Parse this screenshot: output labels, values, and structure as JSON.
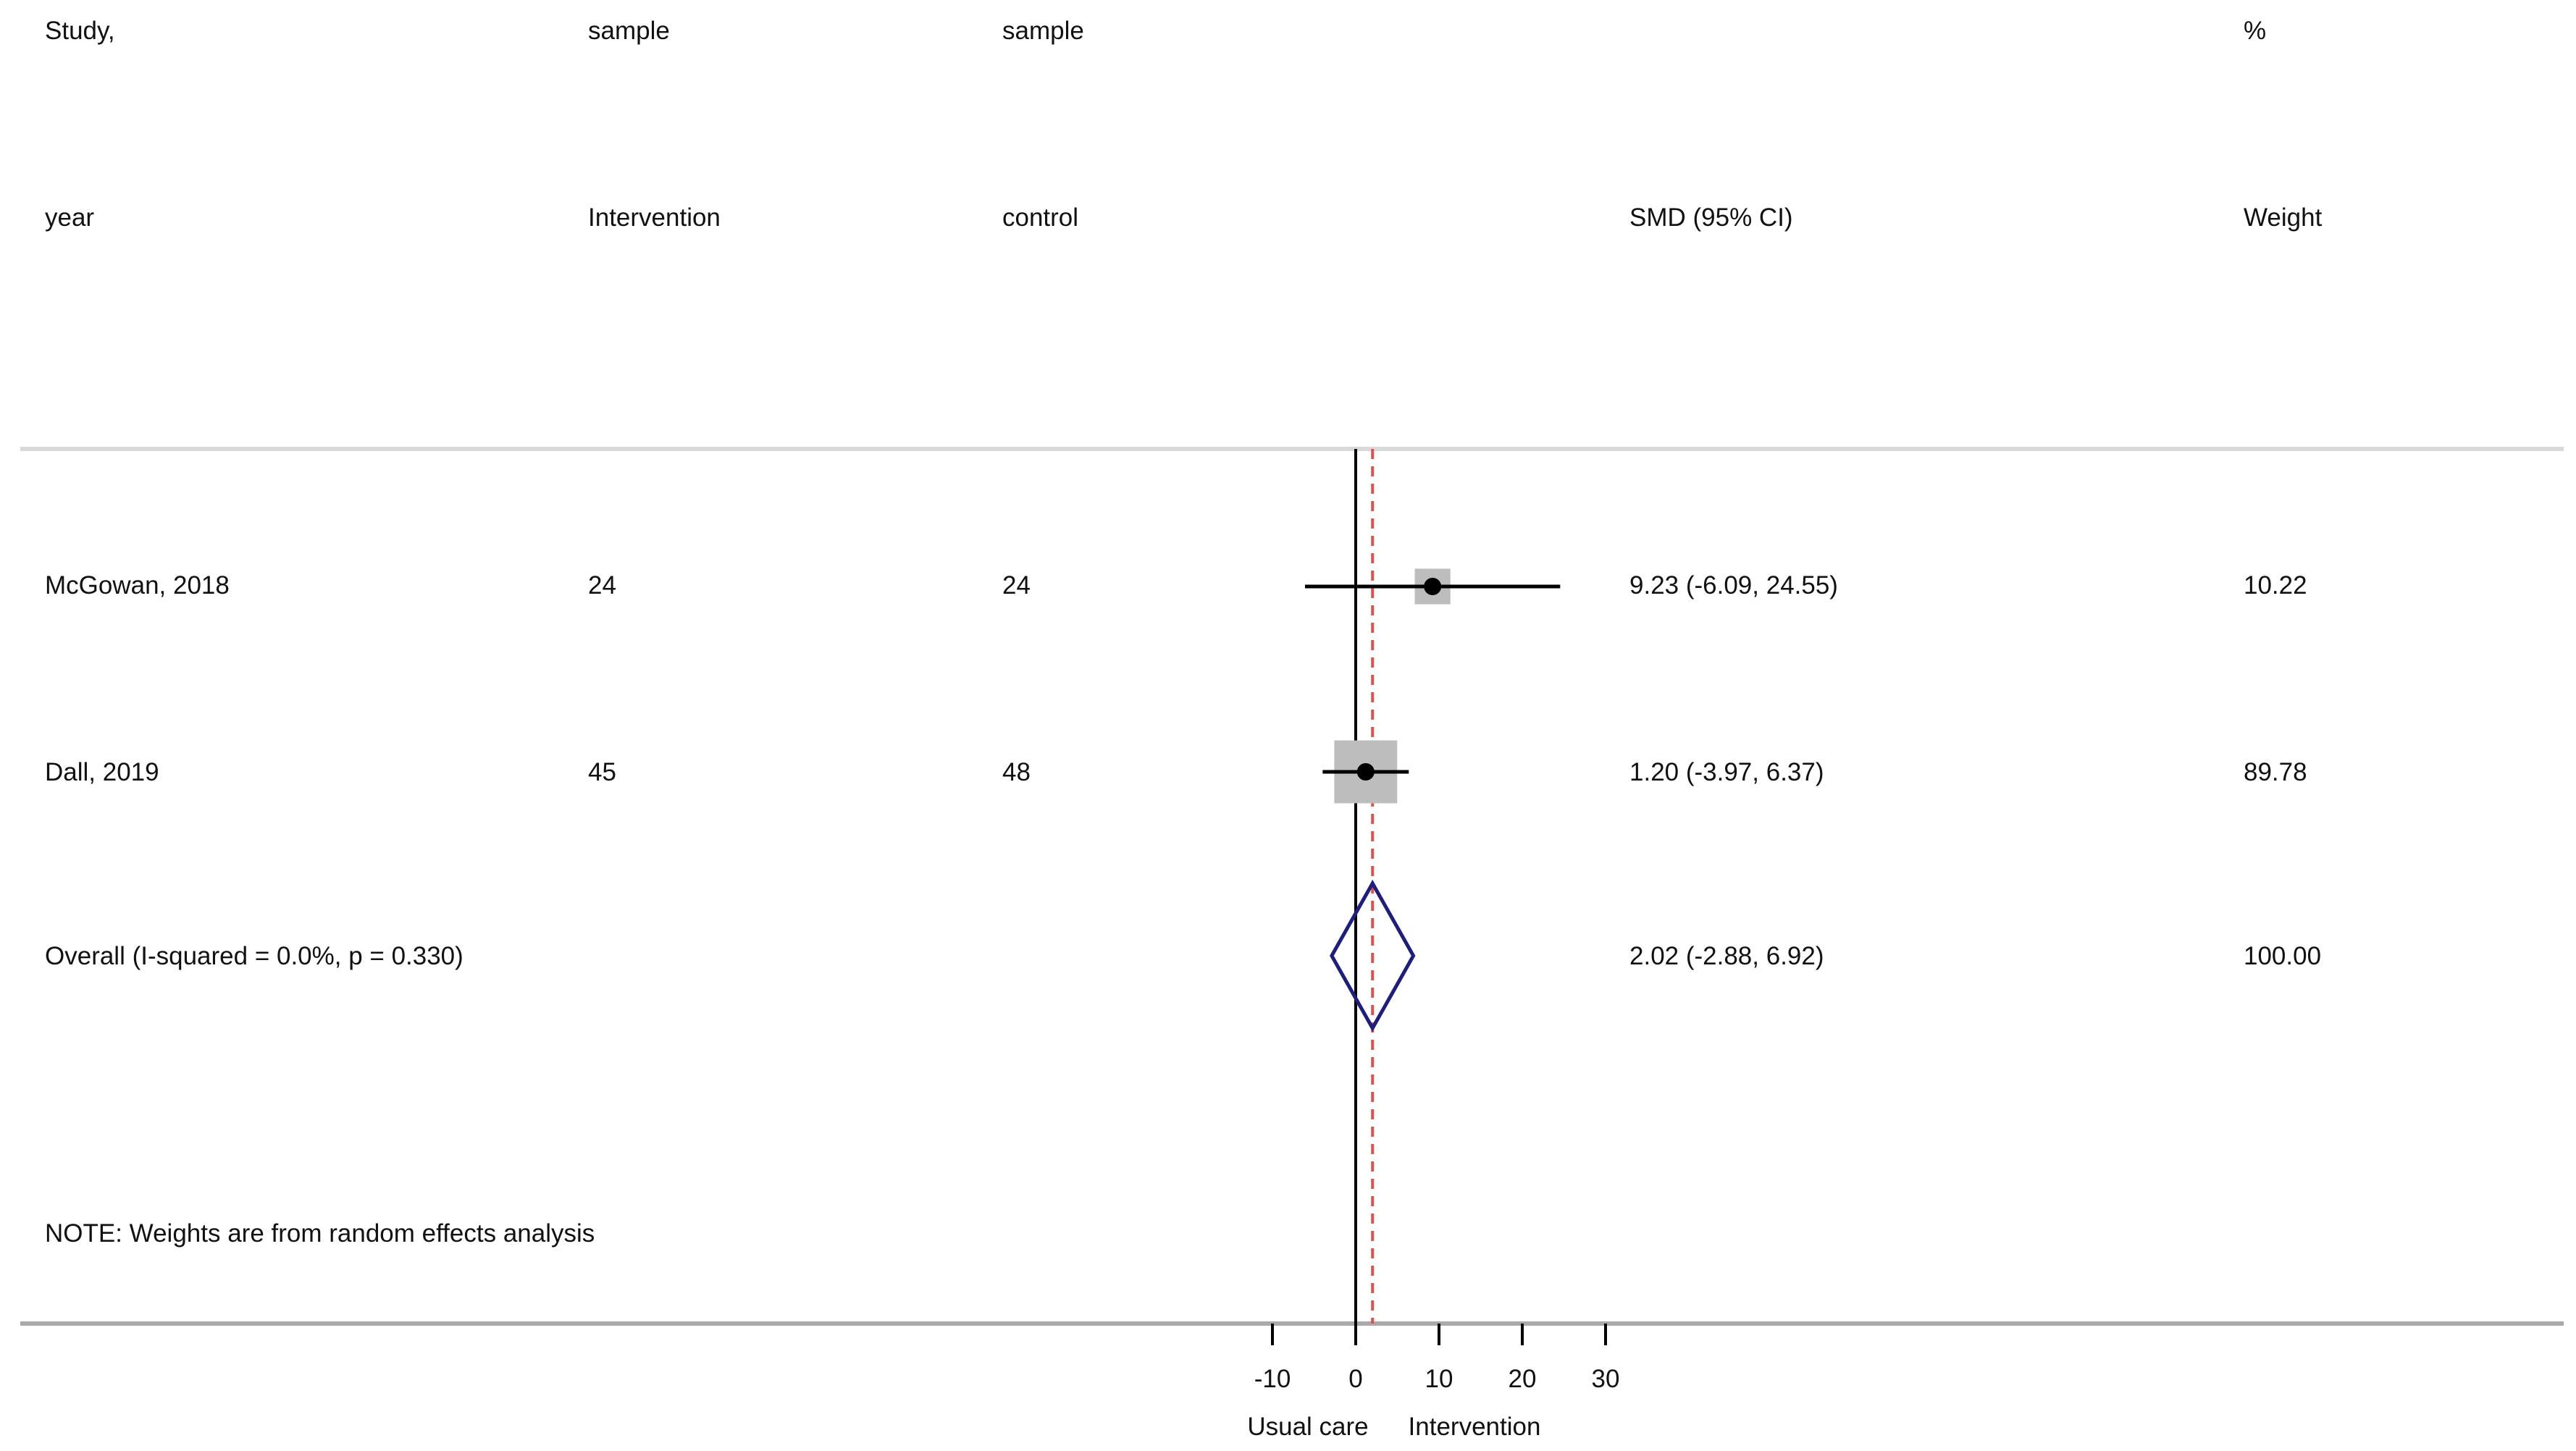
{
  "header": {
    "study_line1": "Study,",
    "study_line2": "year",
    "int_line1": "sample",
    "int_line2": "Intervention",
    "ctl_line1": "sample",
    "ctl_line2": "control",
    "smd_label": "SMD (95% CI)",
    "weight_line1": "%",
    "weight_line2": "Weight"
  },
  "rows": [
    {
      "study": "McGowan, 2018",
      "n_int": "24",
      "n_ctl": "24",
      "ci_text": "9.23 (-6.09, 24.55)",
      "weight_text": "10.22"
    },
    {
      "study": "Dall, 2019",
      "n_int": "45",
      "n_ctl": "48",
      "ci_text": "1.20 (-3.97, 6.37)",
      "weight_text": "89.78"
    }
  ],
  "overall": {
    "label": "Overall  (I-squared = 0.0%, p = 0.330)",
    "ci_text": "2.02 (-2.88, 6.92)",
    "weight_text": "100.00"
  },
  "note": "NOTE: Weights are from random effects analysis",
  "axis": {
    "ticks": [
      "-10",
      "0",
      "10",
      "20",
      "30"
    ],
    "left_label": "Usual care",
    "right_label": "Intervention"
  },
  "colors": {
    "diamond": "#1f1f7a",
    "overall_line": "#d9534f",
    "box": "#bdbdbd",
    "rule": "#d9d9d9"
  },
  "chart_data": {
    "type": "forest",
    "measure": "SMD (95% CI)",
    "studies": [
      {
        "name": "McGowan, 2018",
        "smd": 9.23,
        "lower": -6.09,
        "upper": 24.55,
        "weight": 10.22
      },
      {
        "name": "Dall, 2019",
        "smd": 1.2,
        "lower": -3.97,
        "upper": 6.37,
        "weight": 89.78
      }
    ],
    "overall": {
      "smd": 2.02,
      "lower": -2.88,
      "upper": 6.92,
      "weight": 100.0,
      "i_squared": "0.0%",
      "p": 0.33
    },
    "xlim": [
      -10,
      30
    ],
    "xticks": [
      -10,
      0,
      10,
      20,
      30
    ],
    "null_line": 0,
    "model": "random effects"
  }
}
